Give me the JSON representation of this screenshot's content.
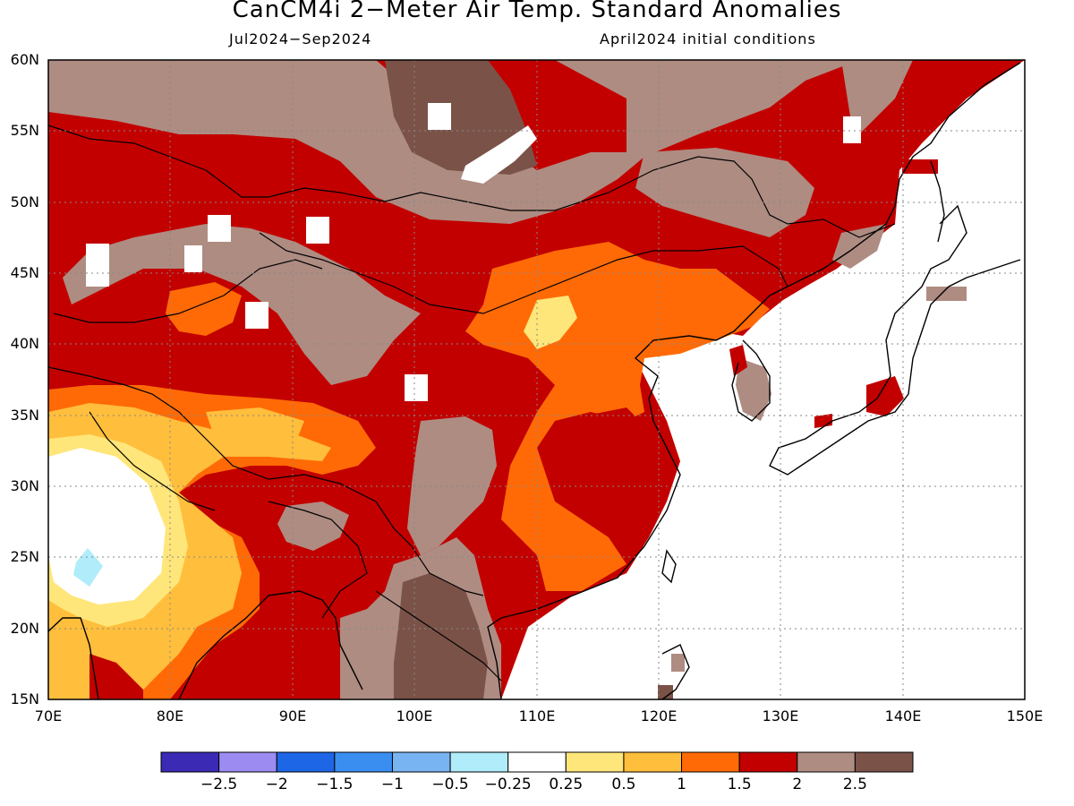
{
  "title": "CanCM4i 2−Meter Air Temp. Standard Anomalies",
  "subtitle_left": "Jul2024−Sep2024",
  "subtitle_right": "April2024 initial conditions",
  "lat_labels": [
    "60N",
    "55N",
    "50N",
    "45N",
    "40N",
    "35N",
    "30N",
    "25N",
    "20N",
    "15N"
  ],
  "lon_labels": [
    "70E",
    "80E",
    "90E",
    "100E",
    "110E",
    "120E",
    "130E",
    "140E",
    "150E"
  ],
  "colorbar": {
    "colors": [
      "#3a2ab4",
      "#9c8cf2",
      "#1d66e6",
      "#3a8ef0",
      "#78b4f2",
      "#b0ecfa",
      "#ffffff",
      "#ffe67a",
      "#ffbe3c",
      "#ff6a06",
      "#c20000",
      "#ae8c82",
      "#7a5248"
    ],
    "labels": [
      "−2.5",
      "−2",
      "−1.5",
      "−1",
      "−0.5",
      "−0.25",
      "0.25",
      "0.5",
      "1",
      "1.5",
      "2",
      "2.5"
    ]
  }
}
